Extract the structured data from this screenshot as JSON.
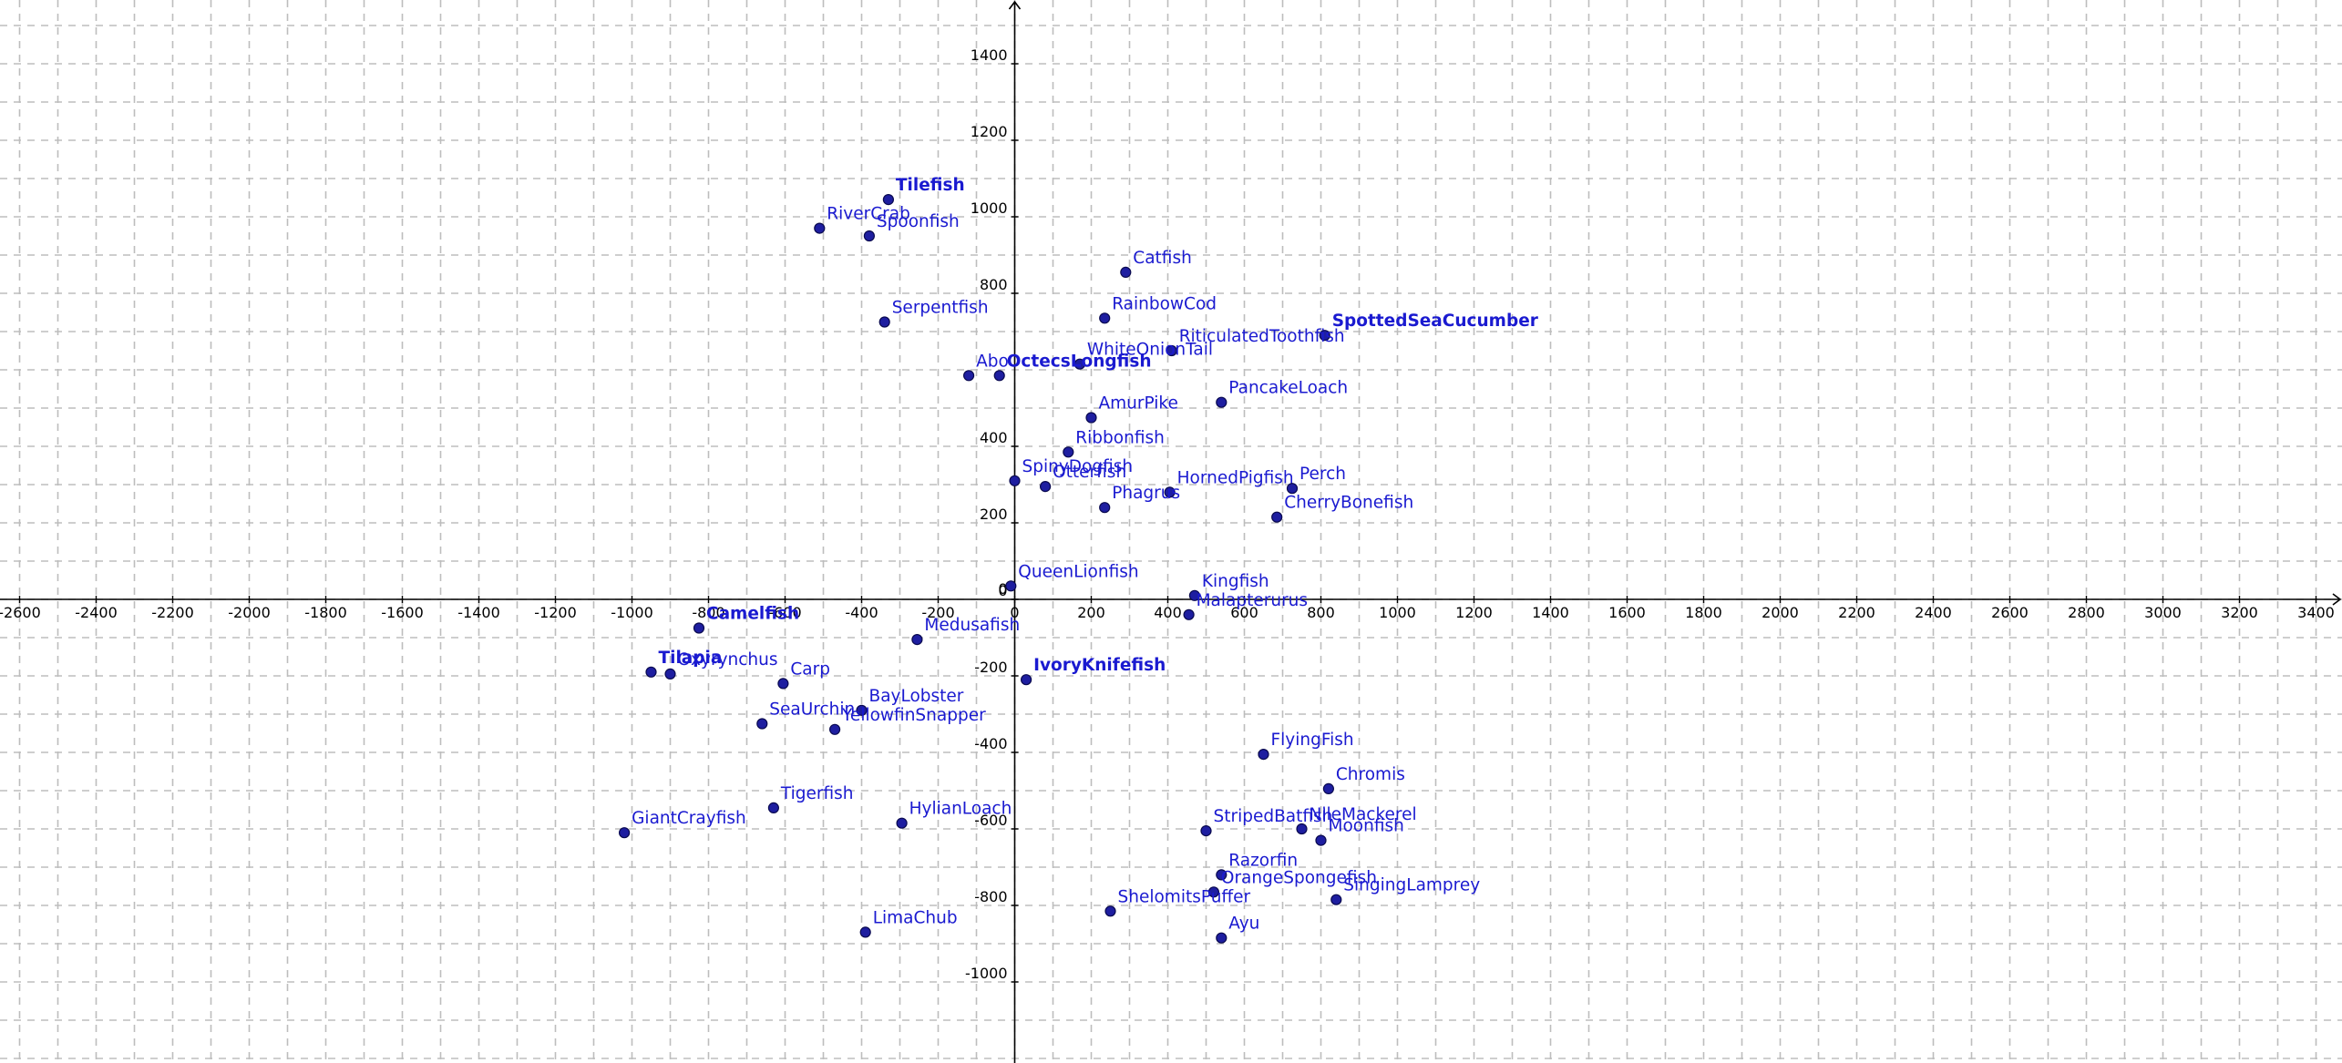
{
  "chart_data": {
    "type": "scatter",
    "title": "",
    "xlabel": "",
    "ylabel": "",
    "xlim": [
      -2600,
      3400
    ],
    "ylim": [
      -1200,
      1600
    ],
    "x_ticks": [
      "-2600",
      "-2400",
      "-2200",
      "-2000",
      "-1800",
      "-1600",
      "-1400",
      "-1200",
      "-1000",
      "-800",
      "-600",
      "-400",
      "-200",
      "0",
      "200",
      "400",
      "600",
      "800",
      "1000",
      "1200",
      "1400",
      "1600",
      "1800",
      "2000",
      "2200",
      "2400",
      "2600",
      "2800",
      "3000",
      "3200",
      "3400"
    ],
    "y_ticks": [
      "-1000",
      "-800",
      "-600",
      "-400",
      "-200",
      "0",
      "200",
      "400",
      "800",
      "1000",
      "1200",
      "1400"
    ],
    "grid": true,
    "colors": {
      "point": "#1e1ea0",
      "label": "#1a1ad0",
      "grid": "#bdbdbd",
      "axis": "#000000"
    },
    "points": [
      {
        "label": "Tilefish",
        "x": -330,
        "y": 1045,
        "bold": true
      },
      {
        "label": "RiverCrab",
        "x": -510,
        "y": 970,
        "bold": false
      },
      {
        "label": "Spoonfish",
        "x": -380,
        "y": 950,
        "bold": false
      },
      {
        "label": "Catfish",
        "x": 290,
        "y": 855,
        "bold": false
      },
      {
        "label": "Serpentfish",
        "x": -340,
        "y": 725,
        "bold": false
      },
      {
        "label": "RainbowCod",
        "x": 235,
        "y": 735,
        "bold": false
      },
      {
        "label": "SpottedSeaCucumber",
        "x": 810,
        "y": 690,
        "bold": true
      },
      {
        "label": "RiticulatedToothfish",
        "x": 410,
        "y": 650,
        "bold": false
      },
      {
        "label": "WhiteOnionTail",
        "x": 170,
        "y": 615,
        "bold": false
      },
      {
        "label": "Abo",
        "x": -120,
        "y": 585,
        "bold": false
      },
      {
        "label": "OctecsLongfish",
        "x": -40,
        "y": 585,
        "bold": true
      },
      {
        "label": "PancakeLoach",
        "x": 540,
        "y": 515,
        "bold": false
      },
      {
        "label": "AmurPike",
        "x": 200,
        "y": 475,
        "bold": false
      },
      {
        "label": "Ribbonfish",
        "x": 140,
        "y": 385,
        "bold": false
      },
      {
        "label": "SpinyDogfish",
        "x": 0,
        "y": 310,
        "bold": false
      },
      {
        "label": "Otterfish",
        "x": 80,
        "y": 295,
        "bold": false
      },
      {
        "label": "HornedPigfish",
        "x": 405,
        "y": 280,
        "bold": false
      },
      {
        "label": "Perch",
        "x": 725,
        "y": 290,
        "bold": false
      },
      {
        "label": "Phagrus",
        "x": 235,
        "y": 240,
        "bold": false
      },
      {
        "label": "CherryBonefish",
        "x": 685,
        "y": 215,
        "bold": false
      },
      {
        "label": "QueenLionfish",
        "x": -10,
        "y": 35,
        "bold": false
      },
      {
        "label": "Kingfish",
        "x": 470,
        "y": 10,
        "bold": false
      },
      {
        "label": "Malapterurus",
        "x": 455,
        "y": -40,
        "bold": false
      },
      {
        "label": "Camelfish",
        "x": -825,
        "y": -75,
        "bold": true
      },
      {
        "label": "Medusafish",
        "x": -255,
        "y": -105,
        "bold": false
      },
      {
        "label": "Tilapia",
        "x": -950,
        "y": -190,
        "bold": true
      },
      {
        "label": "Oxyrynchus",
        "x": -900,
        "y": -195,
        "bold": false
      },
      {
        "label": "IvoryKnifefish",
        "x": 30,
        "y": -210,
        "bold": true
      },
      {
        "label": "Carp",
        "x": -605,
        "y": -220,
        "bold": false
      },
      {
        "label": "BayLobster",
        "x": -400,
        "y": -290,
        "bold": false
      },
      {
        "label": "SeaUrchin",
        "x": -660,
        "y": -325,
        "bold": false
      },
      {
        "label": "YellowfinSnapper",
        "x": -470,
        "y": -340,
        "bold": false
      },
      {
        "label": "FlyingFish",
        "x": 650,
        "y": -405,
        "bold": false
      },
      {
        "label": "Chromis",
        "x": 820,
        "y": -495,
        "bold": false
      },
      {
        "label": "Tigerfish",
        "x": -630,
        "y": -545,
        "bold": false
      },
      {
        "label": "HylianLoach",
        "x": -295,
        "y": -585,
        "bold": false
      },
      {
        "label": "GiantCrayfish",
        "x": -1020,
        "y": -610,
        "bold": false
      },
      {
        "label": "StripedBatfish",
        "x": 500,
        "y": -605,
        "bold": false
      },
      {
        "label": "NileMackerel",
        "x": 750,
        "y": -600,
        "bold": false
      },
      {
        "label": "Moonfish",
        "x": 800,
        "y": -630,
        "bold": false
      },
      {
        "label": "Razorfin",
        "x": 540,
        "y": -720,
        "bold": false
      },
      {
        "label": "OrangeSpongefish",
        "x": 520,
        "y": -765,
        "bold": false
      },
      {
        "label": "SingingLamprey",
        "x": 840,
        "y": -785,
        "bold": false
      },
      {
        "label": "ShelomitsPuffer",
        "x": 250,
        "y": -815,
        "bold": false
      },
      {
        "label": "LimaChub",
        "x": -390,
        "y": -870,
        "bold": false
      },
      {
        "label": "Ayu",
        "x": 540,
        "y": -885,
        "bold": false
      }
    ]
  }
}
